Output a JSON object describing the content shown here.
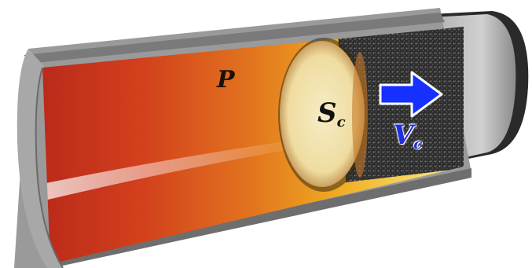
{
  "labels": {
    "pressure": "P",
    "burn_surface_main": "S",
    "burn_surface_sub": "c",
    "velocity_main": "V",
    "velocity_sub": "c"
  },
  "colors": {
    "tube_wall": "#8c8c8c",
    "tube_rim": "#bdbdbd",
    "gas_hot": "#c8321c",
    "gas_warm": "#f0b020",
    "burn_front": "#f2e6b4",
    "propellant": "#3a3a3a",
    "arrow": "#1530ff"
  },
  "icons": {
    "direction": "arrow-right-icon"
  }
}
